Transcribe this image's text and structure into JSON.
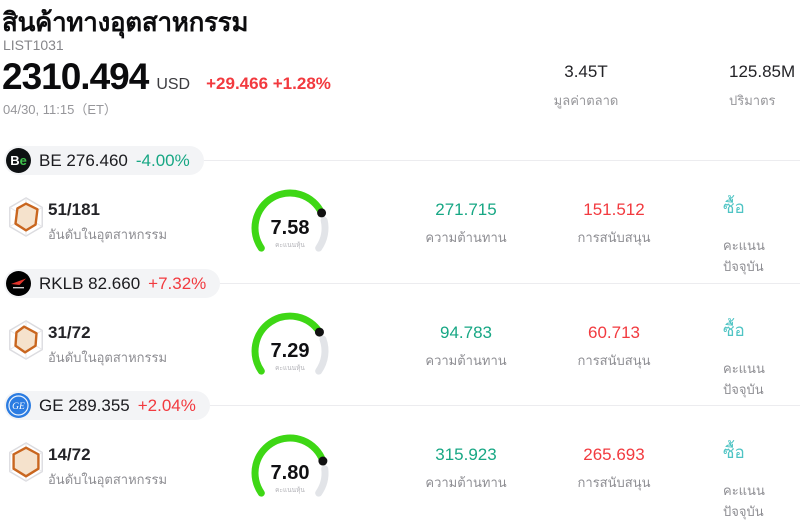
{
  "header": {
    "title": "สินค้าทางอุตสาหกรรม",
    "code": "LIST1031",
    "price": "2310.494",
    "currency": "USD",
    "change": "+29.466 +1.28%",
    "change_direction": "up",
    "datetime": "04/30, 11:15（ET）",
    "market_cap": {
      "value": "3.45T",
      "label": "มูลค่าตลาด"
    },
    "volume": {
      "value": "125.85M",
      "label": "ปริมาตร"
    }
  },
  "labels": {
    "industry_rank": "อันดับในอุตสาหกรรม",
    "stock_score": "คะแนนหุ้น",
    "resistance": "ความต้านทาน",
    "support": "การสนับสนุน",
    "current_rating": "คะแนนปัจจุบัน"
  },
  "colors": {
    "up_red": "#f23a3f",
    "down_teal": "#17a784",
    "buy_teal": "#4fc4c4",
    "gauge_green": "#3ed715",
    "gauge_track": "#e2e4e8",
    "pill_bg": "#f3f4f6",
    "ge_logo_blue": "#2b7ce2"
  },
  "stocks": [
    {
      "ticker": "BE",
      "price": "276.460",
      "change": "-4.00%",
      "direction": "down",
      "logo_b": "B",
      "logo_e": "e",
      "rank": "51/181",
      "score": "7.58",
      "resistance": "271.715",
      "support": "151.512",
      "signal": "ซื้อ"
    },
    {
      "ticker": "RKLB",
      "price": "82.660",
      "change": "+7.32%",
      "direction": "up",
      "rank": "31/72",
      "score": "7.29",
      "resistance": "94.783",
      "support": "60.713",
      "signal": "ซื้อ"
    },
    {
      "ticker": "GE",
      "price": "289.355",
      "change": "+2.04%",
      "direction": "up",
      "logo_text": "GE",
      "rank": "14/72",
      "score": "7.80",
      "resistance": "315.923",
      "support": "265.693",
      "signal": "ซื้อ"
    }
  ]
}
